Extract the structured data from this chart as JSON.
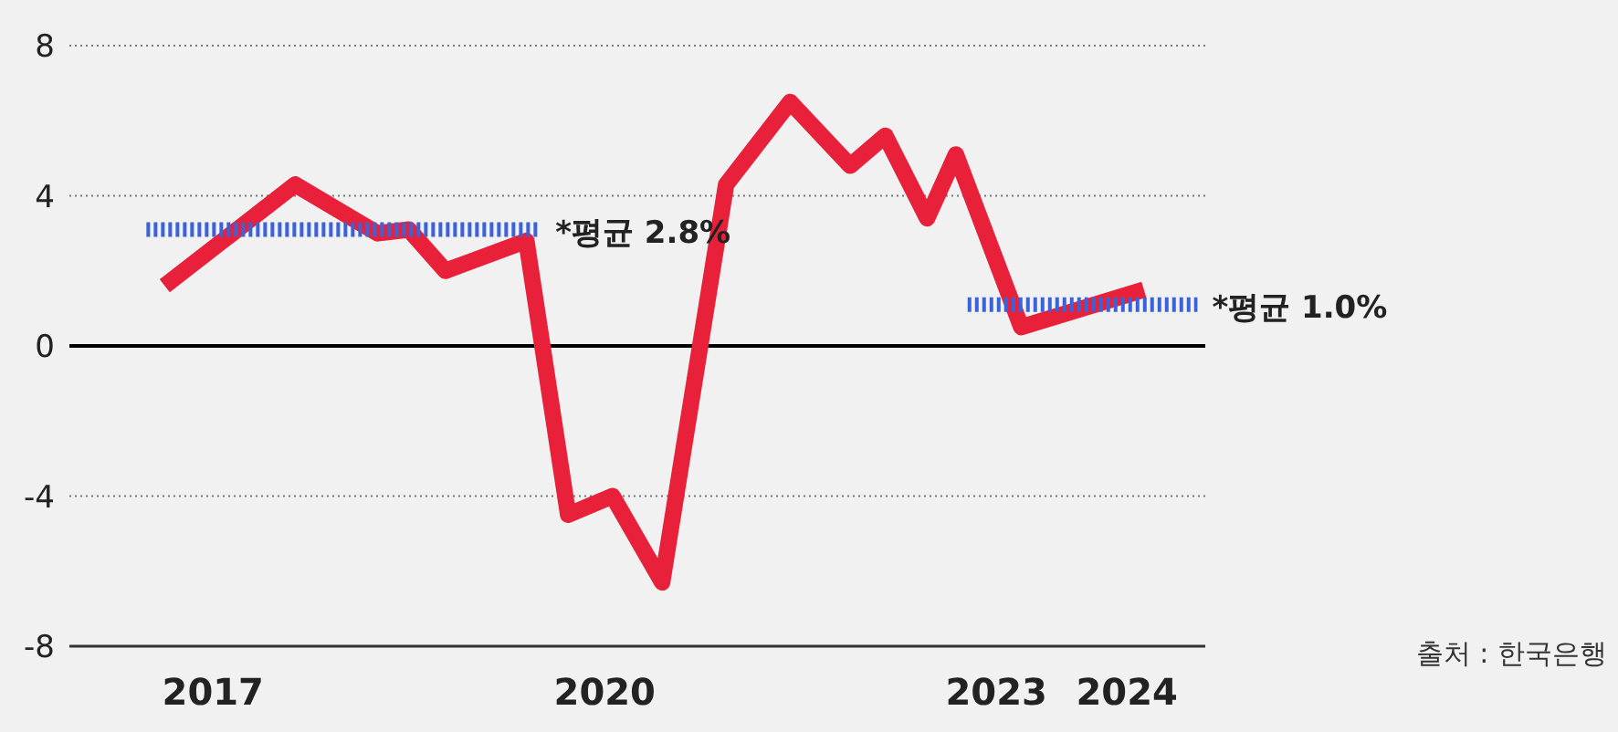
{
  "chart_data": {
    "type": "line",
    "xlim": [
      2015.9,
      2024.6
    ],
    "xticks": [
      2017,
      2020,
      2023,
      2024
    ],
    "ylim": [
      -8,
      8
    ],
    "yticks": [
      -8,
      -4,
      0,
      4,
      8
    ],
    "grid": "y",
    "marker": "none",
    "line_style": "solid",
    "series": [
      {
        "color": "#e8203a",
        "x": [
          2016.63,
          2017.63,
          2018.26,
          2018.5,
          2018.78,
          2019.4,
          2019.72,
          2020.06,
          2020.44,
          2020.93,
          2021.42,
          2021.88,
          2022.15,
          2022.47,
          2022.69,
          2023.19,
          2024.13
        ],
        "values": [
          1.6,
          4.3,
          3.0,
          3.1,
          2.0,
          2.8,
          -4.5,
          -4.0,
          -6.3,
          4.3,
          6.5,
          4.8,
          5.6,
          3.4,
          5.1,
          0.5,
          1.5
        ]
      },
      {
        "color": "#3b62d6",
        "line_style": "dotted",
        "x": [
          2016.49,
          2019.51
        ],
        "values": [
          3.1,
          3.1
        ]
      },
      {
        "color": "#3b62d6",
        "line_style": "dotted",
        "x": [
          2022.78,
          2024.54
        ],
        "values": [
          1.1,
          1.1
        ]
      }
    ],
    "ref_lines": [
      {
        "axis": "y",
        "value": 0,
        "color": "#000000"
      }
    ],
    "annotations": [
      {
        "text": "*평균 2.8%",
        "x": 2019.51,
        "y": 3.1
      },
      {
        "text": "*평균 1.0%",
        "x": 2024.54,
        "y": 1.1
      },
      "출처 : 한국은행"
    ]
  }
}
